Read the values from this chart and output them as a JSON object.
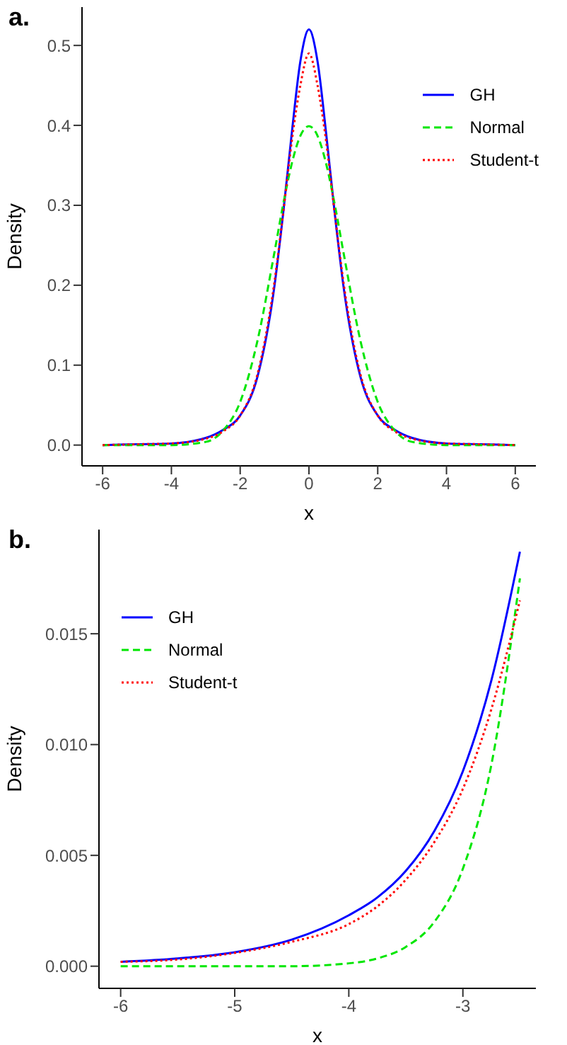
{
  "chart_data": [
    {
      "type": "line",
      "title": "a.",
      "xlabel": "x",
      "ylabel": "Density",
      "x": [
        -6,
        -5,
        -4,
        -3,
        -2.5,
        -2,
        -1.5,
        -1,
        -0.75,
        -0.5,
        -0.25,
        0,
        0.25,
        0.5,
        0.75,
        1,
        1.5,
        2,
        2.5,
        3,
        4,
        5,
        6
      ],
      "xlim": [
        -6.6,
        6.6
      ],
      "ylim": [
        -0.026,
        0.548
      ],
      "xticks": [
        -6,
        -4,
        -2,
        0,
        2,
        4,
        6
      ],
      "yticks": [
        {
          "value": 0,
          "label": "0.0"
        },
        0.1,
        0.2,
        0.3,
        0.4,
        0.5
      ],
      "grid": false,
      "legend": "top right",
      "series": [
        {
          "name": "GH",
          "color": "#0000ff",
          "line_style": "solid",
          "values": [
            0,
            0.001,
            0.002,
            0.009,
            0.019,
            0.037,
            0.085,
            0.2,
            0.29,
            0.39,
            0.48,
            0.52,
            0.48,
            0.39,
            0.29,
            0.2,
            0.085,
            0.037,
            0.019,
            0.009,
            0.002,
            0.001,
            0
          ]
        },
        {
          "name": "Normal",
          "color": "#00e600",
          "line_style": "dashed",
          "values": [
            0,
            0,
            0,
            0.004,
            0.018,
            0.054,
            0.13,
            0.242,
            0.301,
            0.352,
            0.387,
            0.399,
            0.387,
            0.352,
            0.301,
            0.242,
            0.13,
            0.054,
            0.018,
            0.004,
            0,
            0,
            0
          ]
        },
        {
          "name": "Student-t",
          "color": "#ff0000",
          "line_style": "dotted",
          "values": [
            0,
            0.001,
            0.002,
            0.008,
            0.017,
            0.037,
            0.088,
            0.205,
            0.29,
            0.38,
            0.45,
            0.49,
            0.45,
            0.38,
            0.29,
            0.205,
            0.088,
            0.037,
            0.017,
            0.008,
            0.002,
            0.001,
            0
          ]
        }
      ]
    },
    {
      "type": "line",
      "title": "b.",
      "xlabel": "x",
      "ylabel": "Density",
      "x": [
        -6,
        -5.5,
        -5,
        -4.5,
        -4,
        -3.75,
        -3.5,
        -3.25,
        -3,
        -2.75,
        -2.5
      ],
      "xlim": [
        -6.19,
        -2.36
      ],
      "ylim": [
        -0.001,
        0.0197
      ],
      "xticks": [
        -6,
        -5,
        -4,
        -3
      ],
      "yticks": [
        {
          "value": 0,
          "label": "0.000"
        },
        {
          "value": 0.005,
          "label": "0.005"
        },
        {
          "value": 0.01,
          "label": "0.010"
        },
        {
          "value": 0.015,
          "label": "0.015"
        }
      ],
      "grid": false,
      "legend": "top left",
      "series": [
        {
          "name": "GH",
          "color": "#0000ff",
          "line_style": "solid",
          "values": [
            0.0002,
            0.00035,
            0.00063,
            0.0012,
            0.0023,
            0.0031,
            0.0043,
            0.0061,
            0.0088,
            0.0129,
            0.0187
          ]
        },
        {
          "name": "Normal",
          "color": "#00e600",
          "line_style": "dashed",
          "values": [
            0,
            0,
            0,
            0,
            0.00013,
            0.00035,
            0.00087,
            0.002,
            0.0044,
            0.0091,
            0.0175
          ]
        },
        {
          "name": "Student-t",
          "color": "#ff0000",
          "line_style": "dotted",
          "values": [
            0.0002,
            0.0003,
            0.0006,
            0.0011,
            0.0019,
            0.0027,
            0.0039,
            0.0056,
            0.008,
            0.0116,
            0.0165
          ]
        }
      ]
    }
  ]
}
